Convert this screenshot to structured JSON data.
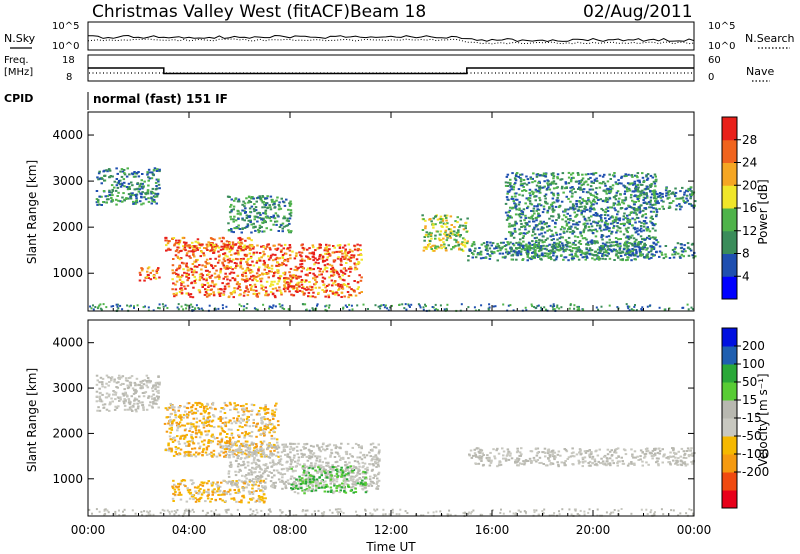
{
  "header": {
    "site": "Christmas Valley West (fitACF)",
    "beam": "Beam 18",
    "date": "02/Aug/2011"
  },
  "panels": {
    "nsky_label": "N.Sky",
    "nsearch_label": "N.Search",
    "nsky_ticks": [
      "10^5",
      "10^0"
    ],
    "nsearch_ticks": [
      "10^5",
      "10^0"
    ],
    "freq_label_1": "Freq.",
    "freq_label_2": "[MHz]",
    "freq_ticks": [
      "18",
      "8"
    ],
    "nave_label": "Nave",
    "nave_ticks": [
      "60",
      "0"
    ],
    "cpid_label": "CPID",
    "cpid_text": "normal (fast) 151 IF"
  },
  "axes": {
    "xlabel": "Time UT",
    "x_ticks": [
      "00:00",
      "04:00",
      "08:00",
      "12:00",
      "16:00",
      "20:00",
      "00:00"
    ],
    "ylabel_power": "Slant Range [km]",
    "ylabel_velocity": "Slant Range [km]",
    "y_ticks": [
      "4000",
      "3000",
      "2000",
      "1000"
    ]
  },
  "colorbars": {
    "power": {
      "label": "Power [dB]",
      "ticks": [
        "28",
        "24",
        "20",
        "16",
        "12",
        "8",
        "4"
      ],
      "colors": [
        "#0000ff",
        "#1f4fb0",
        "#3a8c5a",
        "#4fb34a",
        "#f0e62a",
        "#f5a623",
        "#f0641e",
        "#e8201a"
      ]
    },
    "velocity": {
      "label": "Velocity [m s⁻¹]",
      "ticks": [
        "200",
        "100",
        "50",
        "15",
        "-15",
        "-50",
        "-100",
        "-200"
      ],
      "colors": [
        "#e8001a",
        "#f04a10",
        "#f59a10",
        "#f5b800",
        "#c8c8c0",
        "#b8b8b0",
        "#58cc34",
        "#2aa838",
        "#1f5fb0",
        "#0010e0"
      ]
    }
  },
  "chart_data": {
    "type": "heatmap",
    "x_range": [
      "00:00",
      "24:00"
    ],
    "y_range_km": [
      180,
      4500
    ],
    "freq_segments_MHz": [
      {
        "start": "00:00",
        "end": "03:00",
        "value": 13
      },
      {
        "start": "03:00",
        "end": "15:00",
        "value": 10.5
      },
      {
        "start": "15:00",
        "end": "24:00",
        "value": 13
      }
    ],
    "nave_approx": 2,
    "power_regions": [
      {
        "t": [
          0.3,
          2.8
        ],
        "r": [
          2500,
          3300
        ],
        "level": "low"
      },
      {
        "t": [
          2.0,
          2.8
        ],
        "r": [
          850,
          1150
        ],
        "level": "high"
      },
      {
        "t": [
          3.0,
          6.5
        ],
        "r": [
          1500,
          1800
        ],
        "level": "high"
      },
      {
        "t": [
          3.3,
          10.8
        ],
        "r": [
          500,
          1650
        ],
        "level": "high"
      },
      {
        "t": [
          5.5,
          8.0
        ],
        "r": [
          1900,
          2700
        ],
        "level": "low"
      },
      {
        "t": [
          13.2,
          15.0
        ],
        "r": [
          1500,
          2300
        ],
        "level": "mid"
      },
      {
        "t": [
          15.0,
          24.0
        ],
        "r": [
          1300,
          1700
        ],
        "level": "low"
      },
      {
        "t": [
          16.5,
          22.5
        ],
        "r": [
          1400,
          3200
        ],
        "level": "low"
      },
      {
        "t": [
          21.5,
          24.0
        ],
        "r": [
          2400,
          2900
        ],
        "level": "low"
      }
    ],
    "velocity_regions": [
      {
        "t": [
          0.3,
          2.8
        ],
        "r": [
          2500,
          3300
        ],
        "v": "near-zero"
      },
      {
        "t": [
          3.0,
          7.5
        ],
        "r": [
          1500,
          2700
        ],
        "v": "negative"
      },
      {
        "t": [
          3.3,
          7.0
        ],
        "r": [
          500,
          1000
        ],
        "v": "negative"
      },
      {
        "t": [
          5.5,
          11.5
        ],
        "r": [
          800,
          1800
        ],
        "v": "near-zero"
      },
      {
        "t": [
          8.0,
          11.0
        ],
        "r": [
          700,
          1300
        ],
        "v": "positive"
      },
      {
        "t": [
          15.0,
          24.0
        ],
        "r": [
          1300,
          1700
        ],
        "v": "near-zero"
      }
    ]
  }
}
